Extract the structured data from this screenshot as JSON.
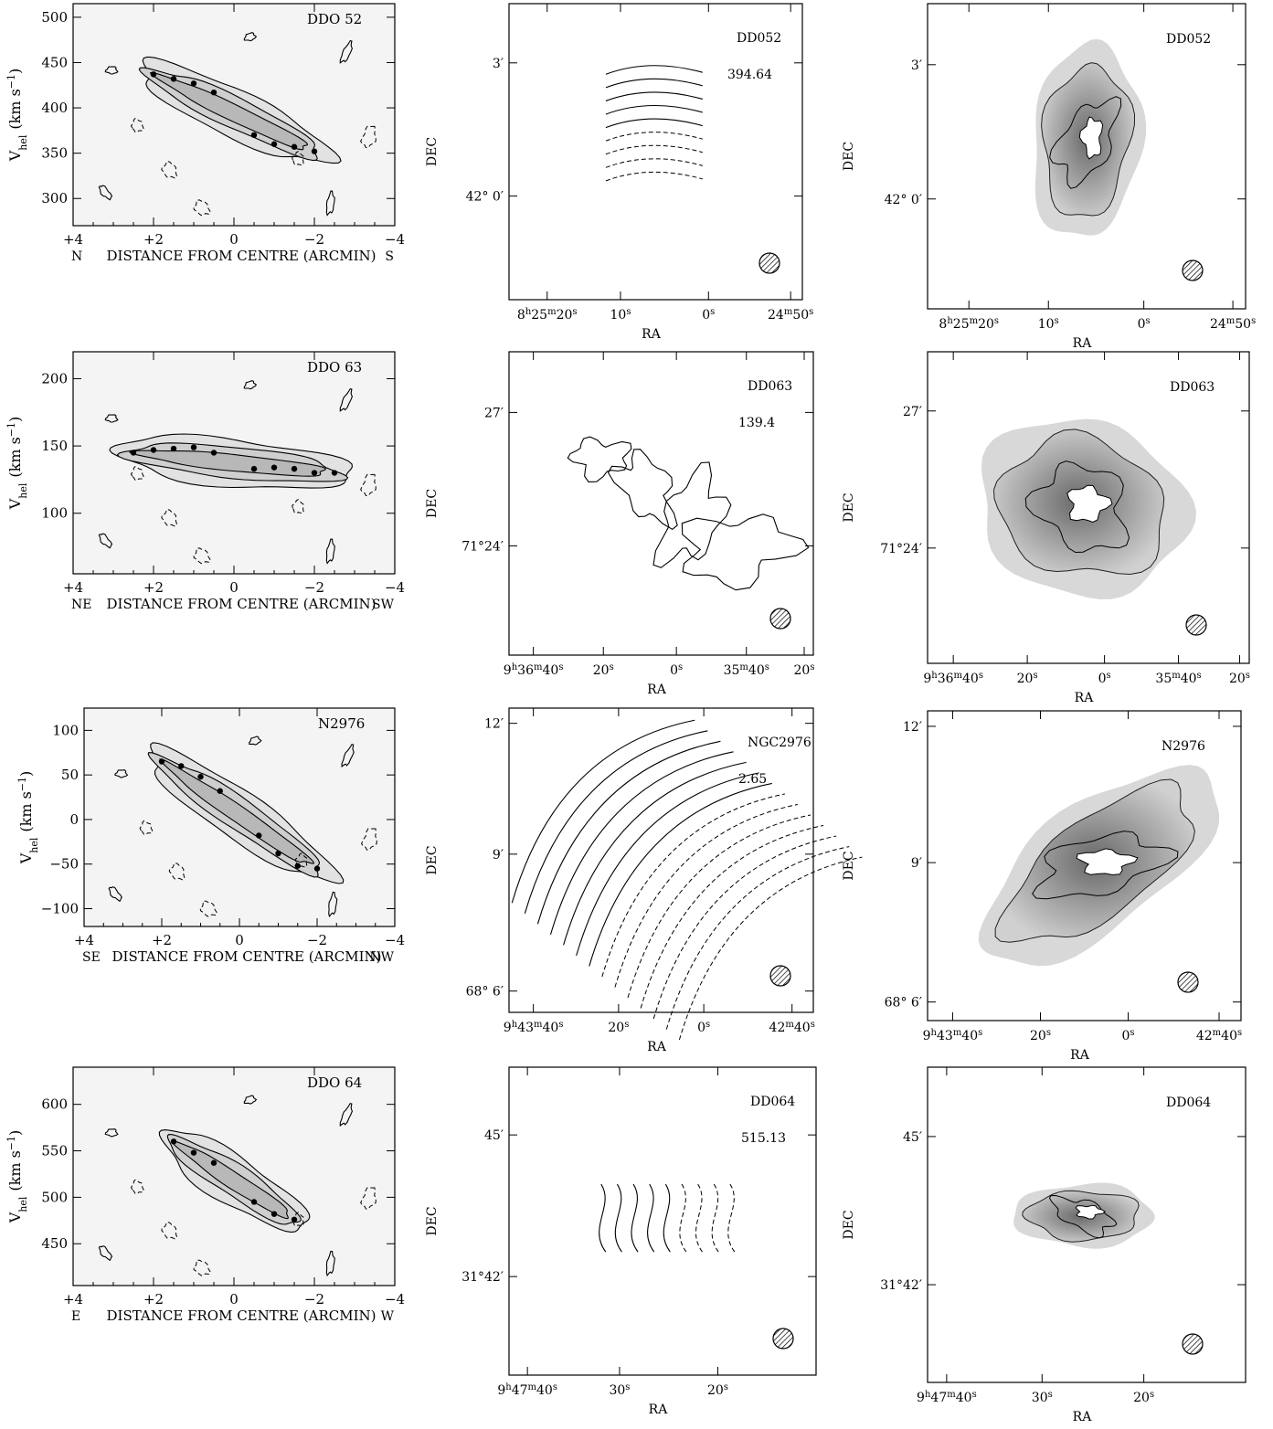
{
  "figure": {
    "rows": [
      {
        "pv": {
          "name": "DDO 52",
          "ylabel_main": "V",
          "ylabel_sub": "hel",
          "ylabel_unit": "(km s",
          "ylabel_exp": "−1",
          "ylabel_close": ")",
          "yticks": [
            "500",
            "450",
            "400",
            "350",
            "300"
          ],
          "xticks": [
            "+4",
            "+2",
            "0",
            "−2",
            "−4"
          ],
          "xlabel": "DISTANCE FROM CENTRE (ARCMIN)",
          "left_dir": "N",
          "right_dir": "S"
        },
        "vel": {
          "name": "DD052",
          "value": "394.64",
          "ylabel": "DEC",
          "xlabel": "RA",
          "yticks": [
            "3′",
            "42° 0′"
          ],
          "xticks": [
            "8h25m20s",
            "10s",
            "0s",
            "24m50s"
          ]
        },
        "disp": {
          "name": "DD052",
          "ylabel": "DEC",
          "xlabel": "RA",
          "yticks": [
            "3′",
            "42° 0′"
          ],
          "xticks": [
            "8h25m20s",
            "10s",
            "0s",
            "24m50s"
          ]
        }
      },
      {
        "pv": {
          "name": "DDO 63",
          "ylabel_main": "V",
          "ylabel_sub": "hel",
          "ylabel_unit": "(km s",
          "ylabel_exp": "−1",
          "ylabel_close": ")",
          "yticks": [
            "200",
            "150",
            "100"
          ],
          "xticks": [
            "+4",
            "+2",
            "0",
            "−2",
            "−4"
          ],
          "xlabel": "DISTANCE FROM CENTRE (ARCMIN)",
          "left_dir": "NE",
          "right_dir": "SW"
        },
        "vel": {
          "name": "DD063",
          "value": "139.4",
          "ylabel": "DEC",
          "xlabel": "RA",
          "yticks": [
            "27′",
            "71°24′"
          ],
          "xticks": [
            "9h36m40s",
            "20s",
            "0s",
            "35m40s",
            "20s"
          ]
        },
        "disp": {
          "name": "DD063",
          "ylabel": "DEC",
          "xlabel": "RA",
          "yticks": [
            "27′",
            "71°24′"
          ],
          "xticks": [
            "9h36m40s",
            "20s",
            "0s",
            "35m40s",
            "20s"
          ]
        }
      },
      {
        "pv": {
          "name": "N2976",
          "ylabel_main": "V",
          "ylabel_sub": "hel",
          "ylabel_unit": "(km s",
          "ylabel_exp": "−1",
          "ylabel_close": ")",
          "yticks": [
            "100",
            "50",
            "0",
            "−50",
            "−100"
          ],
          "xticks": [
            "+4",
            "+2",
            "0",
            "−2",
            "−4"
          ],
          "xlabel": "DISTANCE FROM CENTRE (ARCMIN)",
          "left_dir": "SE",
          "right_dir": "NW"
        },
        "vel": {
          "name": "NGC2976",
          "value": "2.65",
          "ylabel": "DEC",
          "xlabel": "RA",
          "yticks": [
            "12′",
            "9′",
            "68° 6′"
          ],
          "xticks": [
            "9h43m40s",
            "20s",
            "0s",
            "42m40s"
          ]
        },
        "disp": {
          "name": "N2976",
          "ylabel": "DEC",
          "xlabel": "RA",
          "yticks": [
            "12′",
            "9′",
            "68° 6′"
          ],
          "xticks": [
            "9h43m40s",
            "20s",
            "0s",
            "42m40s"
          ]
        }
      },
      {
        "pv": {
          "name": "DDO 64",
          "ylabel_main": "V",
          "ylabel_sub": "hel",
          "ylabel_unit": "(km s",
          "ylabel_exp": "−1",
          "ylabel_close": ")",
          "yticks": [
            "600",
            "550",
            "500",
            "450"
          ],
          "xticks": [
            "+4",
            "+2",
            "0",
            "−2",
            "−4"
          ],
          "xlabel": "DISTANCE FROM CENTRE (ARCMIN)",
          "left_dir": "E",
          "right_dir": "W"
        },
        "vel": {
          "name": "DD064",
          "value": "515.13",
          "ylabel": "DEC",
          "xlabel": "RA",
          "yticks": [
            "45′",
            "31°42′"
          ],
          "xticks": [
            "9h47m40s",
            "30s",
            "20s"
          ]
        },
        "disp": {
          "name": "DD064",
          "ylabel": "DEC",
          "xlabel": "RA",
          "yticks": [
            "45′",
            "31°42′"
          ],
          "xticks": [
            "9h47m40s",
            "30s",
            "20s"
          ]
        }
      }
    ]
  },
  "chart_data": [
    {
      "type": "scatter",
      "title": "DDO 52",
      "xlabel": "DISTANCE FROM CENTRE (ARCMIN)",
      "ylabel": "Vhel (km s−1)",
      "xlim": [
        4,
        -4
      ],
      "ylim": [
        270,
        515
      ],
      "x": [
        2.0,
        1.5,
        1.0,
        0.5,
        -0.5,
        -1.0,
        -1.5,
        -2.0
      ],
      "y": [
        437,
        432,
        427,
        417,
        370,
        360,
        357,
        352
      ]
    },
    {
      "type": "scatter",
      "title": "DDO 63",
      "xlabel": "DISTANCE FROM CENTRE (ARCMIN)",
      "ylabel": "Vhel (km s−1)",
      "xlim": [
        4,
        -4
      ],
      "ylim": [
        55,
        220
      ],
      "x": [
        2.5,
        2.0,
        1.5,
        1.0,
        0.5,
        -0.5,
        -1.0,
        -1.5,
        -2.0,
        -2.5
      ],
      "y": [
        145,
        147,
        148,
        149,
        145,
        133,
        134,
        133,
        130,
        130
      ]
    },
    {
      "type": "scatter",
      "title": "N2976",
      "xlabel": "DISTANCE FROM CENTRE (ARCMIN)",
      "ylabel": "Vhel (km s−1)",
      "xlim": [
        4,
        -4
      ],
      "ylim": [
        -120,
        125
      ],
      "x": [
        2.0,
        1.5,
        1.0,
        0.5,
        -0.5,
        -1.0,
        -1.5,
        -2.0
      ],
      "y": [
        65,
        60,
        48,
        32,
        -18,
        -38,
        -52,
        -55
      ]
    },
    {
      "type": "scatter",
      "title": "DDO 64",
      "xlabel": "DISTANCE FROM CENTRE (ARCMIN)",
      "ylabel": "Vhel (km s−1)",
      "xlim": [
        4,
        -4
      ],
      "ylim": [
        405,
        640
      ],
      "x": [
        1.5,
        1.0,
        0.5,
        -0.5,
        -1.0,
        -1.5
      ],
      "y": [
        560,
        548,
        537,
        495,
        482,
        476
      ]
    }
  ]
}
